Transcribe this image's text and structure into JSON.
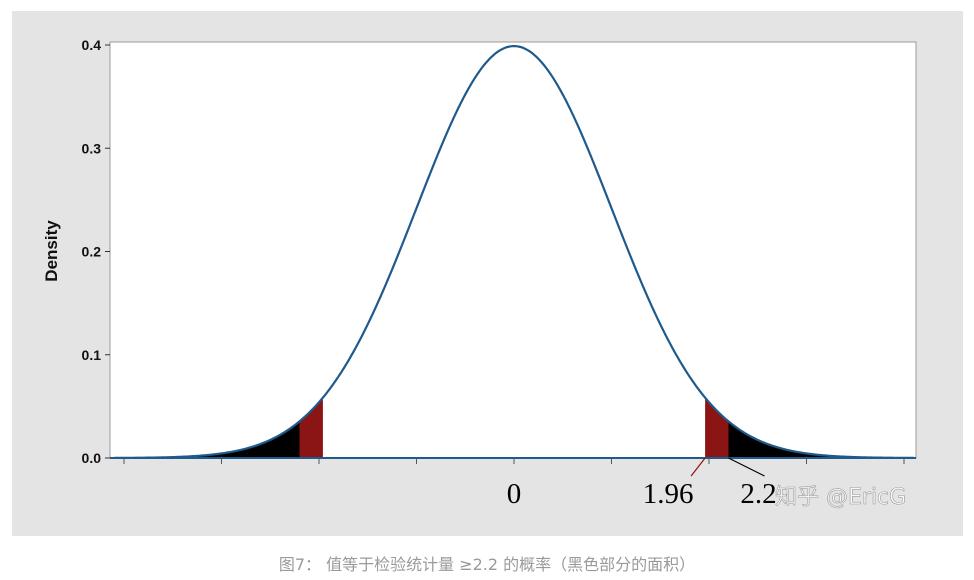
{
  "chart_data": {
    "type": "area",
    "distribution": "standard normal",
    "ylabel": "Density",
    "xlim": [
      -4.1,
      4.1
    ],
    "ylim": [
      0,
      0.4
    ],
    "y_ticks": [
      {
        "value": 0.0,
        "label": "0.0"
      },
      {
        "value": 0.1,
        "label": "0.1"
      },
      {
        "value": 0.2,
        "label": "0.2"
      },
      {
        "value": 0.3,
        "label": "0.3"
      },
      {
        "value": 0.4,
        "label": "0.4"
      }
    ],
    "x_ticks": [
      -4,
      -3,
      -2,
      -1,
      0,
      1,
      2,
      3,
      4
    ],
    "curve_peak": {
      "x": 0,
      "y": 0.399
    },
    "shaded_regions": [
      {
        "from": -1.96,
        "to": -2.2,
        "color": "#8b1414"
      },
      {
        "from": -4.1,
        "to": -2.2,
        "color": "#000000"
      },
      {
        "from": 1.96,
        "to": 2.2,
        "color": "#8b1414"
      },
      {
        "from": 2.2,
        "to": 4.1,
        "color": "#000000"
      }
    ],
    "annotations": [
      {
        "text": "0",
        "x": 0
      },
      {
        "text": "1.96",
        "x": 1.96
      },
      {
        "text": "2.2",
        "x": 2.2
      }
    ],
    "grid": false,
    "legend": "none",
    "colors": {
      "curve": "#1f5a8c",
      "critical_region": "#8b1414",
      "tail": "#000000"
    }
  },
  "watermark": "知乎 @EricG",
  "caption": "图7： 值等于检验统计量 ≥2.2 的概率（黑色部分的面积）"
}
